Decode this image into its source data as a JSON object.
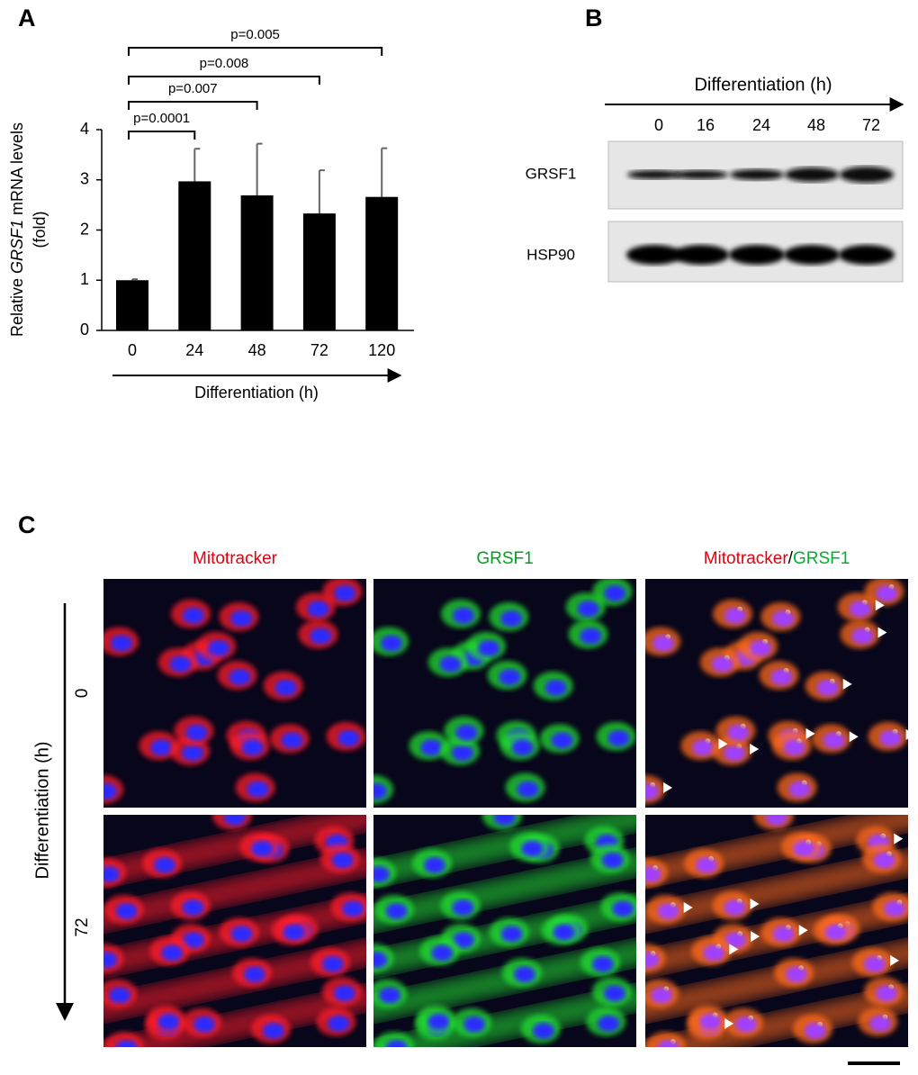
{
  "panels": [
    "A",
    "B",
    "C"
  ],
  "chart_data": {
    "type": "bar",
    "ylabel": [
      "Relative ",
      "GRSF1",
      " mRNA levels",
      "(fold)"
    ],
    "xlabel": "Differentiation (h)",
    "categories": [
      "0",
      "24",
      "48",
      "72",
      "120"
    ],
    "values": [
      1,
      2.97,
      2.69,
      2.33,
      2.66
    ],
    "errors": [
      0.02,
      0.65,
      1.03,
      0.86,
      0.97
    ],
    "color": "#000000",
    "ylim": [
      0,
      4
    ],
    "yticks": [
      0,
      1,
      2,
      3,
      4
    ],
    "annotations": [
      "p=0.0001",
      "p=0.007",
      "p=0.008",
      "p=0.005"
    ]
  },
  "blot": {
    "label": "Differentiation (h)",
    "lanes": [
      "0",
      "16",
      "24",
      "48",
      "72"
    ],
    "rows": [
      "GRSF1",
      "HSP90"
    ]
  },
  "microscopy": {
    "columns": [
      [
        "Mitotracker"
      ],
      [
        "GRSF1"
      ],
      [
        "Mitotracker",
        "/",
        "GRSF1"
      ]
    ],
    "axis_label": "Differentiation (h)",
    "rows": [
      "0",
      "72"
    ]
  }
}
